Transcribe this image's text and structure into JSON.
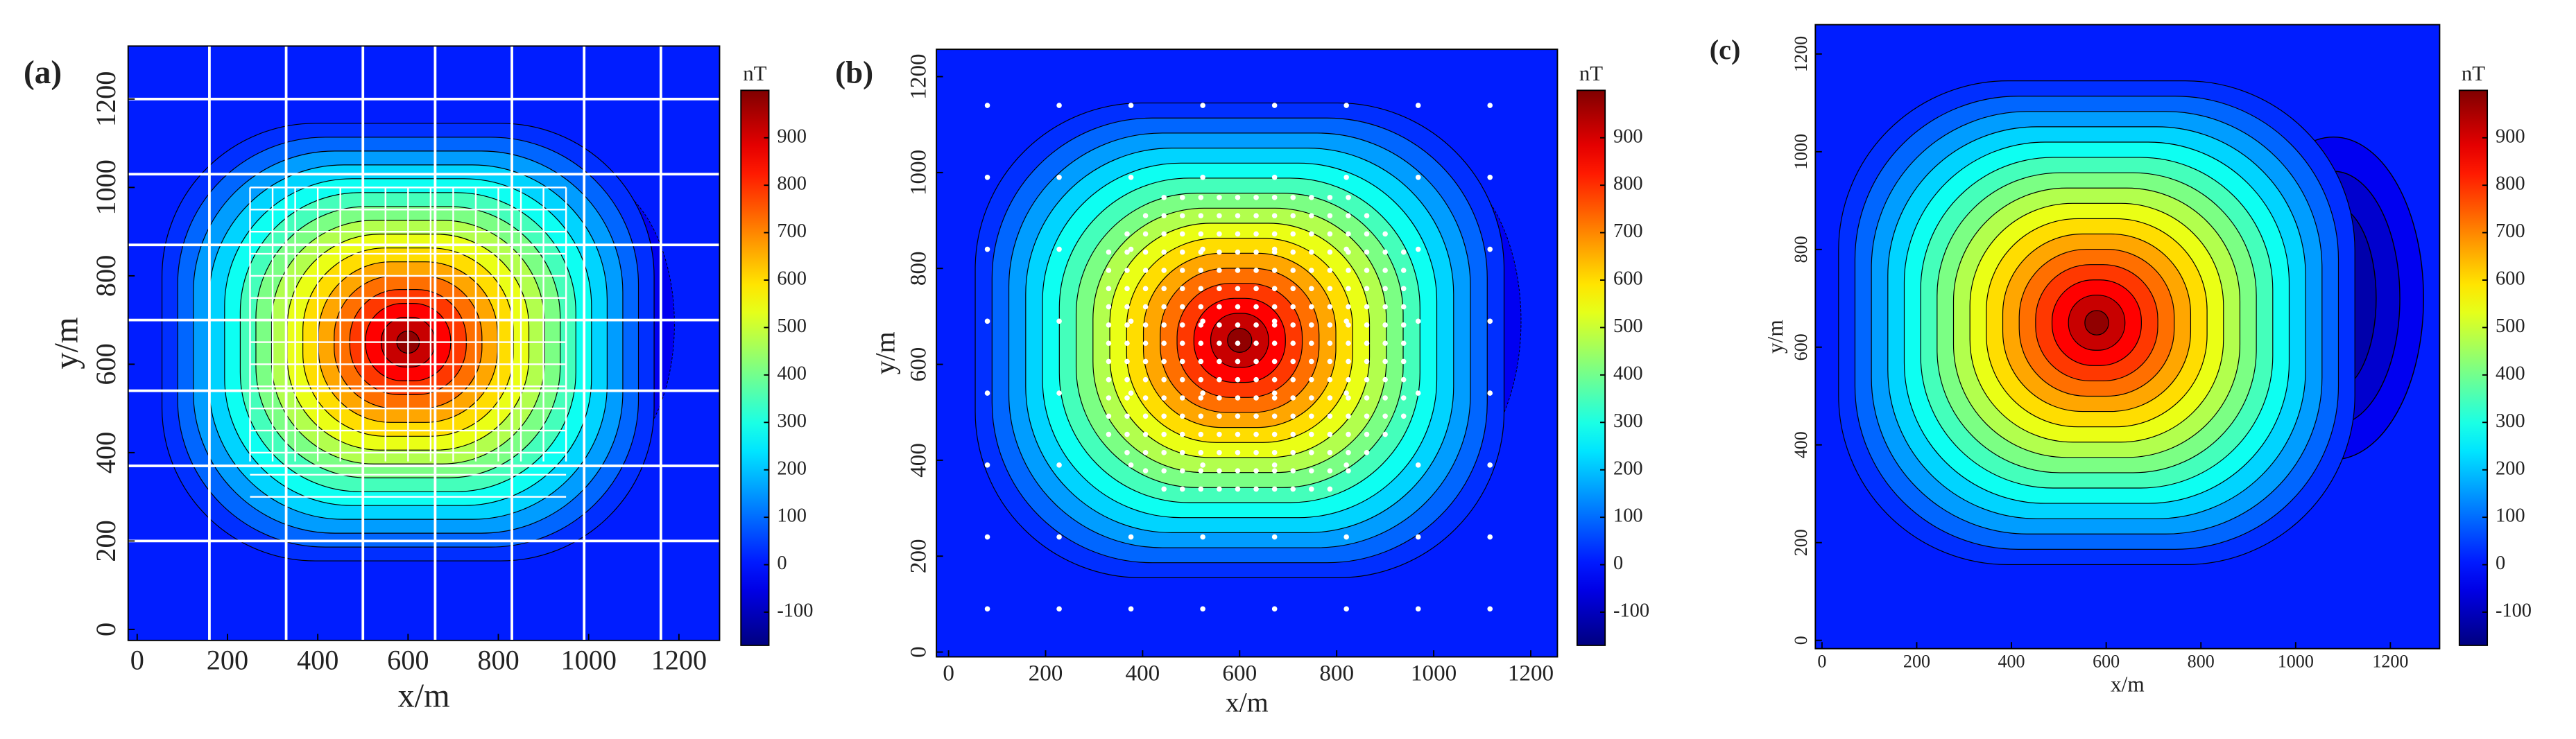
{
  "panels": [
    {
      "label": "(a)",
      "type": "contour",
      "x_label": "x/m",
      "y_label": "y/m",
      "xlim": [
        -20,
        1290
      ],
      "ylim": [
        -25,
        1320
      ],
      "xticks": [
        0,
        200,
        400,
        600,
        800,
        1000,
        1200
      ],
      "yticks": [
        0,
        200,
        400,
        600,
        800,
        1000,
        1200
      ],
      "colorbar": {
        "unit": "nT",
        "clim": [
          -170,
          1000
        ],
        "ticks": [
          -100,
          0,
          100,
          200,
          300,
          400,
          500,
          600,
          700,
          800,
          900
        ]
      }
    },
    {
      "label": "(b)",
      "type": "contour",
      "x_label": "x/m",
      "y_label": "y/m",
      "xlim": [
        -25,
        1255
      ],
      "ylim": [
        -10,
        1257
      ],
      "xticks": [
        0,
        200,
        400,
        600,
        800,
        1000,
        1200
      ],
      "yticks": [
        0,
        200,
        400,
        600,
        800,
        1000,
        1200
      ],
      "colorbar": {
        "unit": "nT",
        "clim": [
          -170,
          1000
        ],
        "ticks": [
          -100,
          0,
          100,
          200,
          300,
          400,
          500,
          600,
          700,
          800,
          900
        ]
      }
    },
    {
      "label": "(c)",
      "type": "contour",
      "x_label": "x/m",
      "y_label": "y/m",
      "xlim": [
        -14,
        1304
      ],
      "ylim": [
        -17,
        1260
      ],
      "xticks": [
        0,
        200,
        400,
        600,
        800,
        1000,
        1200
      ],
      "yticks": [
        0,
        200,
        400,
        600,
        800,
        1000,
        1200
      ],
      "colorbar": {
        "unit": "nT",
        "clim": [
          -170,
          1000
        ],
        "ticks": [
          -100,
          0,
          100,
          200,
          300,
          400,
          500,
          600,
          700,
          800,
          900
        ]
      }
    }
  ]
}
